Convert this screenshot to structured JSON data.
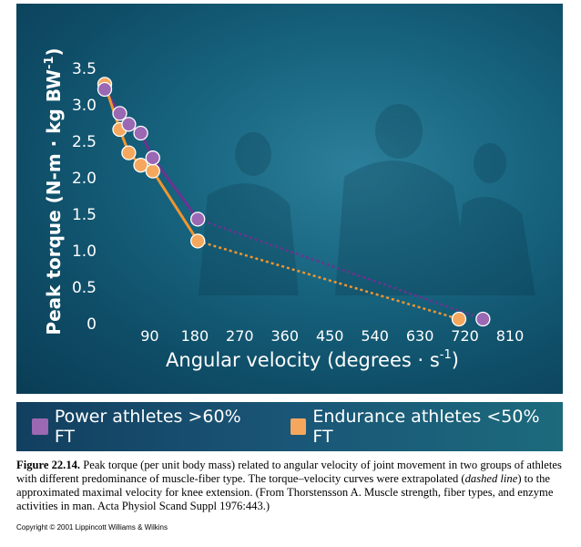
{
  "chart_data": {
    "type": "line",
    "xlabel": "Angular velocity (degrees · s",
    "xlabel_sup": "-1",
    "xlabel_end": ")",
    "ylabel": "Peak torque (N-m · kg BW",
    "ylabel_sup": "-1",
    "ylabel_end": ")",
    "x_ticks": [
      "90",
      "180",
      "270",
      "360",
      "450",
      "540",
      "630",
      "720",
      "810"
    ],
    "y_ticks": [
      "0",
      "0.5",
      "1.0",
      "1.5",
      "2.0",
      "2.5",
      "3.0",
      "3.5"
    ],
    "xlim": [
      0,
      810
    ],
    "ylim": [
      0,
      3.5
    ],
    "legend_position": "bottom",
    "series": [
      {
        "name": "Power athletes >60% FT",
        "color": "#9b68b3",
        "line_color": "#6a3490",
        "x": [
          0,
          30,
          48,
          72,
          96,
          186
        ],
        "y": [
          3.2,
          2.87,
          2.72,
          2.6,
          2.26,
          1.42
        ],
        "extrapolated": {
          "x": [
            186,
            756
          ],
          "y": [
            1.42,
            0.05
          ]
        }
      },
      {
        "name": "Endurance athletes <50% FT",
        "color": "#f5a85d",
        "line_color": "#f0962f",
        "x": [
          0,
          30,
          48,
          72,
          96,
          186
        ],
        "y": [
          3.27,
          2.65,
          2.33,
          2.16,
          2.08,
          1.12
        ],
        "extrapolated": {
          "x": [
            186,
            708
          ],
          "y": [
            1.12,
            0.05
          ]
        }
      }
    ]
  },
  "caption": {
    "label": "Figure 22.14.",
    "text_1": " Peak torque (per unit body mass) related to angular velocity of joint movement in two groups of athletes with different predominance of muscle-fiber type. The torque–velocity curves were extrapolated (",
    "emphasis": "dashed line",
    "text_2": ") to the approximated maximal velocity for knee extension. (From Thorstensson A. Muscle strength, fiber types, and enzyme activities in man. Acta Physiol Scand Suppl 1976:443.)"
  },
  "copyright": "Copyright © 2001 Lippincott Williams & Wilkins"
}
